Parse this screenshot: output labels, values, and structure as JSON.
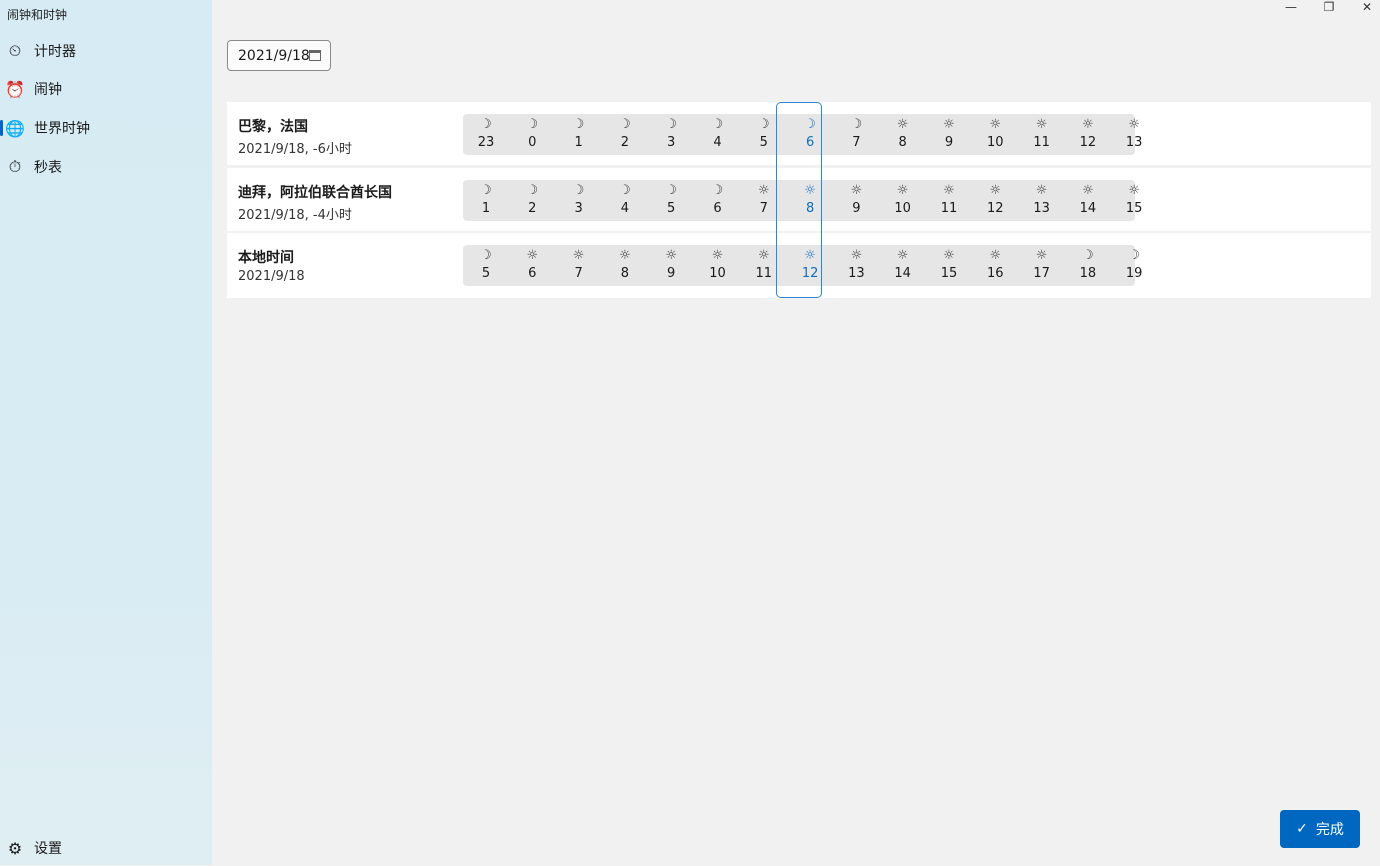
{
  "app": {
    "title": "闹钟和时钟"
  },
  "nav": {
    "items": [
      {
        "label": "计时器",
        "icon": "timer-icon"
      },
      {
        "label": "闹钟",
        "icon": "alarm-icon"
      },
      {
        "label": "世界时钟",
        "icon": "world-clock-icon",
        "selected": true
      },
      {
        "label": "秒表",
        "icon": "stopwatch-icon"
      }
    ],
    "settings": "设置"
  },
  "date_picker": {
    "value": "2021/9/18"
  },
  "compare": {
    "selected_index": 7,
    "accent": "#0f6cbd",
    "rows": [
      {
        "name": "巴黎，法国",
        "sub": "2021/9/18, -6小时",
        "hours": [
          23,
          0,
          1,
          2,
          3,
          4,
          5,
          6,
          7,
          8,
          9,
          10,
          11,
          12,
          13
        ],
        "icons": [
          "moon",
          "moon",
          "moon",
          "moon",
          "moon",
          "moon",
          "moon",
          "moon",
          "moon",
          "sun",
          "sun",
          "sun",
          "sun",
          "sun",
          "sun"
        ]
      },
      {
        "name": "迪拜，阿拉伯联合酋长国",
        "sub": "2021/9/18, -4小时",
        "hours": [
          1,
          2,
          3,
          4,
          5,
          6,
          7,
          8,
          9,
          10,
          11,
          12,
          13,
          14,
          15
        ],
        "icons": [
          "moon",
          "moon",
          "moon",
          "moon",
          "moon",
          "moon",
          "sun",
          "sun",
          "sun",
          "sun",
          "sun",
          "sun",
          "sun",
          "sun",
          "sun"
        ]
      },
      {
        "name": "本地时间",
        "sub": "2021/9/18",
        "hours": [
          5,
          6,
          7,
          8,
          9,
          10,
          11,
          12,
          13,
          14,
          15,
          16,
          17,
          18,
          19
        ],
        "icons": [
          "moon",
          "sun",
          "sun",
          "sun",
          "sun",
          "sun",
          "sun",
          "sun",
          "sun",
          "sun",
          "sun",
          "sun",
          "sun",
          "moon",
          "moon"
        ]
      }
    ]
  },
  "done_button": {
    "label": "完成"
  }
}
